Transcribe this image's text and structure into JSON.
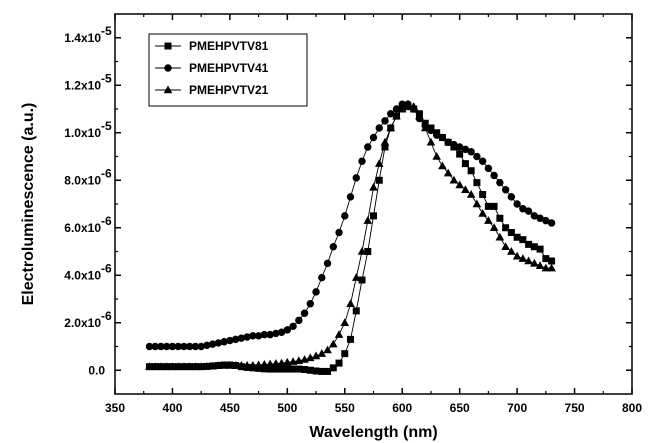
{
  "chart_data": {
    "type": "line",
    "xlabel": "Wavelength (nm)",
    "ylabel": "Electroluminescence (a.u.)",
    "xlim": [
      350,
      800
    ],
    "ylim": [
      -1e-06,
      1.5e-05
    ],
    "x_ticks": [
      350,
      400,
      450,
      500,
      550,
      600,
      650,
      700,
      750,
      800
    ],
    "x_tick_labels": [
      "350",
      "400",
      "450",
      "500",
      "550",
      "600",
      "650",
      "700",
      "750",
      "800"
    ],
    "y_ticks": [
      {
        "value": 0,
        "mantissa": "0.0",
        "exponent": ""
      },
      {
        "value": 2e-06,
        "mantissa": "2.0x10",
        "exponent": "-6"
      },
      {
        "value": 4e-06,
        "mantissa": "4.0x10",
        "exponent": "-6"
      },
      {
        "value": 6e-06,
        "mantissa": "6.0x10",
        "exponent": "-6"
      },
      {
        "value": 8e-06,
        "mantissa": "8.0x10",
        "exponent": "-6"
      },
      {
        "value": 1e-05,
        "mantissa": "1.0x10",
        "exponent": "-5"
      },
      {
        "value": 1.2e-05,
        "mantissa": "1.2x10",
        "exponent": "-5"
      },
      {
        "value": 1.4e-05,
        "mantissa": "1.4x10",
        "exponent": "-5"
      }
    ],
    "grid": false,
    "legend_position": "top-left",
    "series": [
      {
        "name": "PMEHPVTV81",
        "marker": "square",
        "x": [
          380,
          385,
          390,
          395,
          400,
          405,
          410,
          415,
          420,
          425,
          430,
          435,
          440,
          445,
          450,
          455,
          460,
          465,
          470,
          475,
          480,
          485,
          490,
          495,
          500,
          505,
          510,
          515,
          520,
          525,
          530,
          535,
          540,
          545,
          550,
          555,
          560,
          565,
          570,
          575,
          580,
          585,
          590,
          595,
          600,
          605,
          610,
          615,
          620,
          625,
          630,
          635,
          640,
          645,
          650,
          655,
          660,
          665,
          670,
          675,
          680,
          685,
          690,
          695,
          700,
          705,
          710,
          715,
          720,
          725,
          730
        ],
        "y": [
          1.5e-07,
          1.5e-07,
          1.5e-07,
          1.5e-07,
          1.5e-07,
          1.5e-07,
          1.5e-07,
          1.5e-07,
          1.5e-07,
          1.5e-07,
          1.6e-07,
          1.8e-07,
          2e-07,
          2.2e-07,
          2.2e-07,
          2e-07,
          1.5e-07,
          1.2e-07,
          1e-07,
          8e-08,
          6e-08,
          5e-08,
          5e-08,
          5e-08,
          5e-08,
          5e-08,
          5e-08,
          3e-08,
          0,
          -3e-08,
          -5e-08,
          -5e-08,
          1e-07,
          3e-07,
          7e-07,
          1.3e-06,
          2.5e-06,
          3.8e-06,
          5e-06,
          6.5e-06,
          8e-06,
          9.4e-06,
          1.02e-05,
          1.07e-05,
          1.1e-05,
          1.11e-05,
          1.1e-05,
          1.08e-05,
          1.04e-05,
          1.02e-05,
          1e-05,
          9.8e-06,
          9.6e-06,
          9.4e-06,
          9.1e-06,
          8.7e-06,
          8.4e-06,
          7.9e-06,
          7.4e-06,
          6.9e-06,
          6.9e-06,
          6.4e-06,
          6e-06,
          5.8e-06,
          5.6e-06,
          5.5e-06,
          5.3e-06,
          5.2e-06,
          5.1e-06,
          4.7e-06,
          4.6e-06
        ]
      },
      {
        "name": "PMEHPVTV41",
        "marker": "circle",
        "x": [
          380,
          385,
          390,
          395,
          400,
          405,
          410,
          415,
          420,
          425,
          430,
          435,
          440,
          445,
          450,
          455,
          460,
          465,
          470,
          475,
          480,
          485,
          490,
          495,
          500,
          505,
          510,
          515,
          520,
          525,
          530,
          535,
          540,
          545,
          550,
          555,
          560,
          565,
          570,
          575,
          580,
          585,
          590,
          595,
          600,
          605,
          610,
          615,
          620,
          625,
          630,
          635,
          640,
          645,
          650,
          655,
          660,
          665,
          670,
          675,
          680,
          685,
          690,
          695,
          700,
          705,
          710,
          715,
          720,
          725,
          730
        ],
        "y": [
          1e-06,
          1e-06,
          1e-06,
          1e-06,
          1e-06,
          1e-06,
          1e-06,
          1e-06,
          1e-06,
          1e-06,
          1.05e-06,
          1.1e-06,
          1.15e-06,
          1.2e-06,
          1.25e-06,
          1.3e-06,
          1.35e-06,
          1.4e-06,
          1.45e-06,
          1.45e-06,
          1.5e-06,
          1.5e-06,
          1.55e-06,
          1.6e-06,
          1.7e-06,
          1.85e-06,
          2.1e-06,
          2.4e-06,
          2.8e-06,
          3.3e-06,
          3.9e-06,
          4.5e-06,
          5.2e-06,
          5.8e-06,
          6.5e-06,
          7.3e-06,
          8.1e-06,
          8.8e-06,
          9.4e-06,
          9.8e-06,
          1.02e-05,
          1.05e-05,
          1.08e-05,
          1.1e-05,
          1.12e-05,
          1.12e-05,
          1.1e-05,
          1.06e-05,
          1.03e-05,
          1.01e-05,
          9.9e-06,
          9.8e-06,
          9.6e-06,
          9.5e-06,
          9.4e-06,
          9.3e-06,
          9.2e-06,
          9e-06,
          8.8e-06,
          8.5e-06,
          8.2e-06,
          7.9e-06,
          7.6e-06,
          7.3e-06,
          7e-06,
          6.8e-06,
          6.7e-06,
          6.5e-06,
          6.4e-06,
          6.3e-06,
          6.2e-06
        ]
      },
      {
        "name": "PMEHPVTV21",
        "marker": "triangle",
        "x": [
          380,
          385,
          390,
          395,
          400,
          405,
          410,
          415,
          420,
          425,
          430,
          435,
          440,
          445,
          450,
          455,
          460,
          465,
          470,
          475,
          480,
          485,
          490,
          495,
          500,
          505,
          510,
          515,
          520,
          525,
          530,
          535,
          540,
          545,
          550,
          555,
          560,
          565,
          570,
          575,
          580,
          585,
          590,
          595,
          600,
          605,
          610,
          615,
          620,
          625,
          630,
          635,
          640,
          645,
          650,
          655,
          660,
          665,
          670,
          675,
          680,
          685,
          690,
          695,
          700,
          705,
          710,
          715,
          720,
          725,
          730
        ],
        "y": [
          1.5e-07,
          1.5e-07,
          1.5e-07,
          1.5e-07,
          1.5e-07,
          1.5e-07,
          1.5e-07,
          1.5e-07,
          1.5e-07,
          1.5e-07,
          1.6e-07,
          1.7e-07,
          1.9e-07,
          2e-07,
          2e-07,
          2e-07,
          2e-07,
          2e-07,
          2e-07,
          2.2e-07,
          2.4e-07,
          2.6e-07,
          2.8e-07,
          3e-07,
          3.3e-07,
          3.6e-07,
          4e-07,
          4.5e-07,
          5.2e-07,
          6e-07,
          7e-07,
          8.5e-07,
          1.1e-06,
          1.5e-06,
          2e-06,
          2.8e-06,
          3.9e-06,
          5e-06,
          6.3e-06,
          7.7e-06,
          8.7e-06,
          9.6e-06,
          1.02e-05,
          1.07e-05,
          1.1e-05,
          1.12e-05,
          1.11e-05,
          1.07e-05,
          1.02e-05,
          9.6e-06,
          9e-06,
          8.6e-06,
          8.3e-06,
          8e-06,
          7.8e-06,
          7.6e-06,
          7.4e-06,
          7e-06,
          6.6e-06,
          6.3e-06,
          6e-06,
          5.6e-06,
          5.2e-06,
          5e-06,
          4.8e-06,
          4.7e-06,
          4.6e-06,
          4.5e-06,
          4.4e-06,
          4.3e-06,
          4.3e-06
        ]
      }
    ]
  }
}
